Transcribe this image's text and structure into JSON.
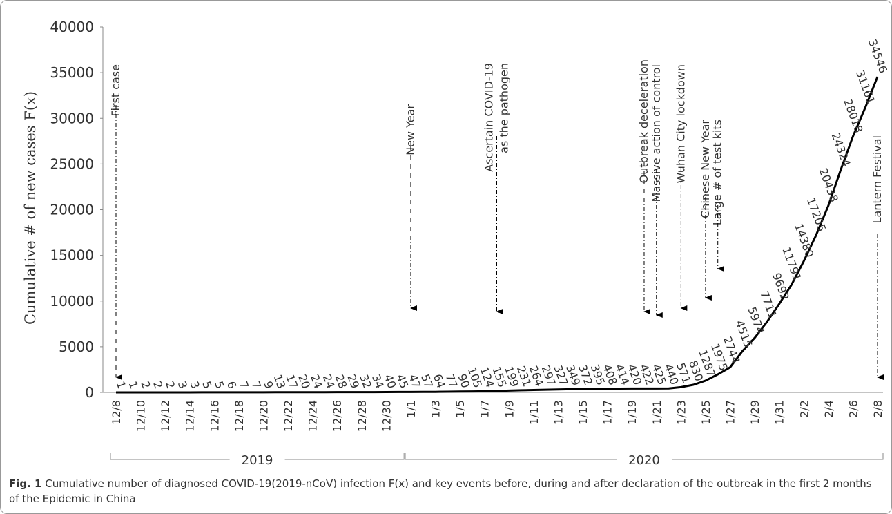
{
  "chart_data": {
    "type": "line",
    "y_label": "Cumulative # of new cases F(x)",
    "categories": [
      "12/8",
      null,
      "12/10",
      null,
      "12/12",
      null,
      "12/14",
      null,
      "12/16",
      null,
      "12/18",
      null,
      "12/20",
      null,
      "12/22",
      null,
      "12/24",
      null,
      "12/26",
      null,
      "12/28",
      null,
      "12/30",
      null,
      "1/1",
      null,
      "1/3",
      null,
      "1/5",
      null,
      "1/7",
      null,
      "1/9",
      null,
      "1/11",
      null,
      "1/13",
      null,
      "1/15",
      null,
      "1/17",
      null,
      "1/19",
      null,
      "1/21",
      null,
      "1/23",
      null,
      "1/25",
      null,
      "1/27",
      null,
      "1/29",
      null,
      "1/31",
      null,
      "2/2",
      null,
      "2/4",
      null,
      "2/6",
      null,
      "2/8"
    ],
    "values": [
      1,
      1,
      2,
      2,
      2,
      3,
      3,
      5,
      5,
      6,
      7,
      7,
      9,
      13,
      17,
      20,
      24,
      24,
      28,
      29,
      32,
      34,
      40,
      45,
      47,
      57,
      64,
      77,
      90,
      105,
      124,
      155,
      199,
      231,
      264,
      297,
      327,
      349,
      372,
      395,
      408,
      414,
      420,
      422,
      425,
      440,
      571,
      830,
      1287,
      1975,
      2744,
      4515,
      5974,
      7711,
      9692,
      11791,
      14380,
      17205,
      20438,
      24324,
      28018,
      31161,
      34546
    ],
    "color": "#000000",
    "ylim": [
      0,
      40000
    ],
    "yticks": [
      0,
      5000,
      10000,
      15000,
      20000,
      25000,
      30000,
      35000,
      40000
    ],
    "annotations": [
      {
        "lines": [
          "First case"
        ],
        "category": 0
      },
      {
        "lines": [
          "New Year"
        ],
        "category": 24
      },
      {
        "lines": [
          "Ascertain COVID-19",
          "as the pathogen"
        ],
        "category": 31
      },
      {
        "lines": [
          "Outbreak deceleration"
        ],
        "category": 43
      },
      {
        "lines": [
          "Massive action of control"
        ],
        "category": 44
      },
      {
        "lines": [
          "Wuhan City lockdown"
        ],
        "category": 46
      },
      {
        "lines": [
          "Chinese  New Year"
        ],
        "category": 48
      },
      {
        "lines": [
          "Large # of test kits"
        ],
        "category": 49
      },
      {
        "lines": [
          "Lantern Festival"
        ],
        "category": 62
      }
    ],
    "periods": [
      {
        "label": "2019",
        "from": 0,
        "to": 23
      },
      {
        "label": "2020",
        "from": 24,
        "to": 62
      }
    ],
    "caption": {
      "prefix": "Fig. 1",
      "text": "Cumulative number of diagnosed COVID-19(2019-nCoV) infection F(x) and key events before, during and after declaration of the outbreak in the first 2 months of the Epidemic in China"
    }
  }
}
